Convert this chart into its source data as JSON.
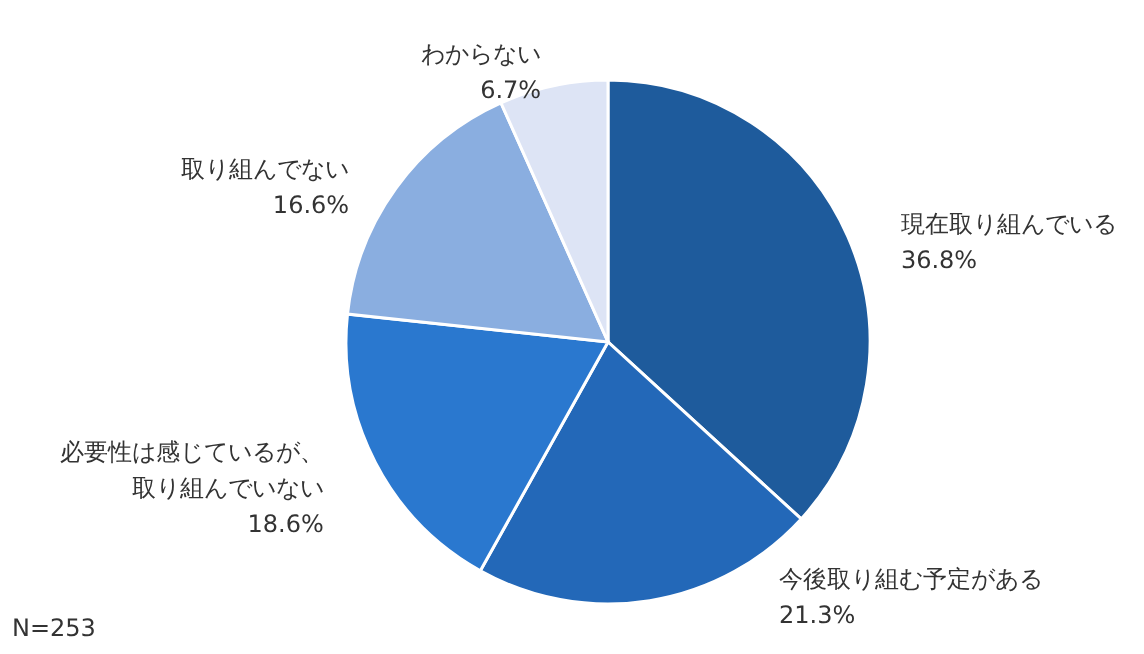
{
  "chart_data": {
    "type": "pie",
    "categories": [
      "現在取り組んでいる",
      "今後取り組む予定がある",
      "必要性は感じているが、取り組んでいない",
      "取り組んでない",
      "わからない"
    ],
    "values": [
      36.8,
      21.3,
      18.6,
      16.6,
      6.7
    ],
    "value_labels": [
      "36.8%",
      "21.3%",
      "18.6%",
      "16.6%",
      "6.7%"
    ],
    "colors": [
      "#1e5b9c",
      "#2368b8",
      "#2a78cf",
      "#8aaee0",
      "#dde4f5"
    ],
    "annotations": [
      "N=253"
    ]
  }
}
